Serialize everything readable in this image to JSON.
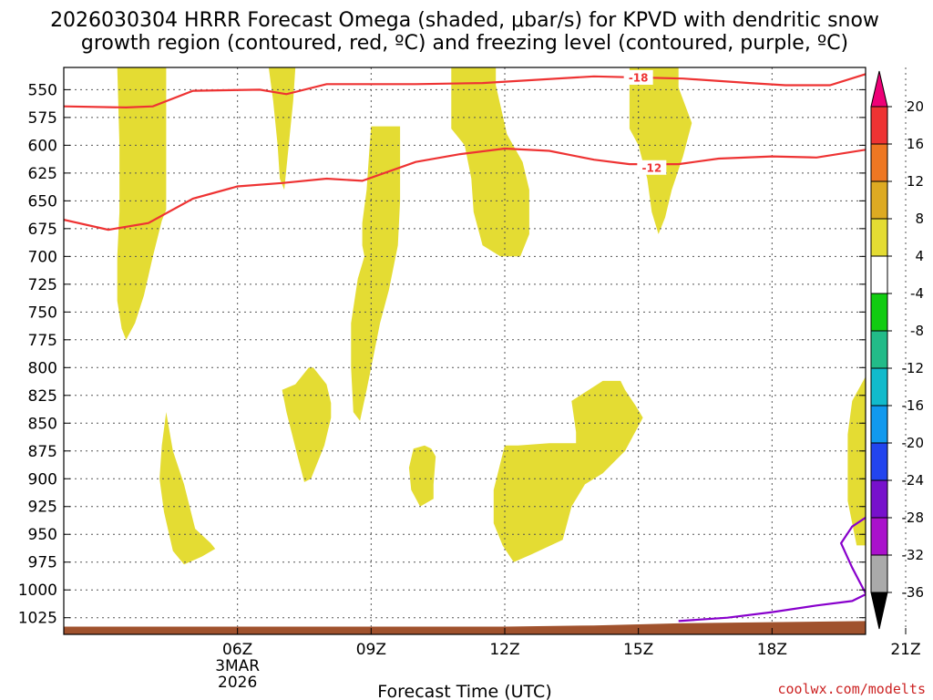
{
  "chart_data": {
    "type": "time-height contour",
    "title_line1": "2026030304 HRRR Forecast Omega (shaded, μbar/s) for KPVD with dendritic snow",
    "title_line2": "growth region (contoured, red, ºC) and freezing level (contoured, purple, ºC)",
    "xlabel": "Forecast Time (UTC)",
    "credit": "coolwx.com/modelts",
    "x_range_hours": [
      2.1,
      20.1
    ],
    "y_range_hpa": [
      1040,
      530
    ],
    "y_ticks": [
      550,
      575,
      600,
      625,
      650,
      675,
      700,
      725,
      750,
      775,
      800,
      825,
      850,
      875,
      900,
      925,
      950,
      975,
      1000,
      1025
    ],
    "x_ticks": [
      {
        "hour": 6,
        "label": "06Z",
        "date": "3MAR",
        "year": "2026"
      },
      {
        "hour": 9,
        "label": "09Z"
      },
      {
        "hour": 12,
        "label": "12Z"
      },
      {
        "hour": 15,
        "label": "15Z"
      },
      {
        "hour": 18,
        "label": "18Z"
      },
      {
        "hour": 21,
        "label": "21Z"
      }
    ],
    "colorbar": [
      {
        "level": 20,
        "color": "#ee0077"
      },
      {
        "level": 16,
        "color": "#ee3333"
      },
      {
        "level": 12,
        "color": "#ee7722"
      },
      {
        "level": 8,
        "color": "#ddaa22"
      },
      {
        "level": 4,
        "color": "#e4dc33"
      },
      {
        "level": -4,
        "color": "#ffffff"
      },
      {
        "level": -8,
        "color": "#11cc11"
      },
      {
        "level": -12,
        "color": "#22bb88"
      },
      {
        "level": -16,
        "color": "#11bbcc"
      },
      {
        "level": -20,
        "color": "#1199ee"
      },
      {
        "level": -24,
        "color": "#2244ee"
      },
      {
        "level": -28,
        "color": "#7711cc"
      },
      {
        "level": -32,
        "color": "#aa11cc"
      },
      {
        "level": -36,
        "color": "#aaaaaa"
      }
    ],
    "colorbar_ends": {
      "top": "#ee0077",
      "bottom": "#000000"
    },
    "omega_shaded_regions": [
      {
        "name": "upward-motion-1",
        "level": "4",
        "points": [
          [
            3.4,
            530
          ],
          [
            4.4,
            530
          ],
          [
            4.4,
            658
          ],
          [
            4.3,
            668
          ],
          [
            4.1,
            700
          ],
          [
            3.9,
            735
          ],
          [
            3.7,
            760
          ],
          [
            3.5,
            775
          ],
          [
            3.4,
            765
          ],
          [
            3.3,
            740
          ],
          [
            3.3,
            700
          ],
          [
            3.35,
            660
          ],
          [
            3.35,
            600
          ],
          [
            3.3,
            530
          ]
        ]
      },
      {
        "name": "upward-motion-2",
        "level": "4",
        "points": [
          [
            6.7,
            530
          ],
          [
            7.3,
            530
          ],
          [
            7.25,
            560
          ],
          [
            7.15,
            600
          ],
          [
            7.05,
            640
          ],
          [
            6.95,
            630
          ],
          [
            6.9,
            600
          ],
          [
            6.8,
            560
          ]
        ]
      },
      {
        "name": "upward-motion-3",
        "level": "4",
        "points": [
          [
            9.0,
            583
          ],
          [
            9.65,
            583
          ],
          [
            9.65,
            650
          ],
          [
            9.6,
            690
          ],
          [
            9.4,
            730
          ],
          [
            9.2,
            760
          ],
          [
            9.05,
            790
          ],
          [
            8.9,
            820
          ],
          [
            8.75,
            848
          ],
          [
            8.6,
            840
          ],
          [
            8.55,
            800
          ],
          [
            8.55,
            760
          ],
          [
            8.7,
            720
          ],
          [
            8.85,
            700
          ],
          [
            8.8,
            690
          ],
          [
            8.8,
            670
          ],
          [
            8.9,
            640
          ],
          [
            8.95,
            610
          ]
        ]
      },
      {
        "name": "upward-motion-4",
        "level": "4",
        "points": [
          [
            10.8,
            530
          ],
          [
            11.8,
            530
          ],
          [
            11.8,
            546
          ],
          [
            12.05,
            590
          ],
          [
            12.4,
            615
          ],
          [
            12.55,
            640
          ],
          [
            12.55,
            680
          ],
          [
            12.35,
            700
          ],
          [
            11.9,
            700
          ],
          [
            11.5,
            690
          ],
          [
            11.3,
            660
          ],
          [
            11.25,
            630
          ],
          [
            11.1,
            600
          ],
          [
            10.8,
            585
          ]
        ]
      },
      {
        "name": "upward-motion-5",
        "level": "4",
        "points": [
          [
            14.8,
            530
          ],
          [
            15.9,
            530
          ],
          [
            15.9,
            548
          ],
          [
            16.2,
            580
          ],
          [
            16.0,
            610
          ],
          [
            15.75,
            640
          ],
          [
            15.6,
            665
          ],
          [
            15.45,
            680
          ],
          [
            15.3,
            660
          ],
          [
            15.2,
            630
          ],
          [
            15.0,
            600
          ],
          [
            14.8,
            585
          ]
        ]
      },
      {
        "name": "upward-motion-6",
        "level": "4",
        "points": [
          [
            7.0,
            820
          ],
          [
            7.3,
            815
          ],
          [
            7.6,
            800
          ],
          [
            7.7,
            800
          ],
          [
            8.0,
            815
          ],
          [
            8.1,
            832
          ],
          [
            8.1,
            845
          ],
          [
            7.95,
            870
          ],
          [
            7.65,
            900
          ],
          [
            7.5,
            903
          ],
          [
            7.35,
            880
          ],
          [
            7.1,
            840
          ]
        ]
      },
      {
        "name": "upward-motion-7",
        "level": "4",
        "points": [
          [
            4.4,
            840
          ],
          [
            4.55,
            875
          ],
          [
            4.8,
            905
          ],
          [
            5.05,
            945
          ],
          [
            5.4,
            958
          ],
          [
            5.5,
            963
          ],
          [
            5.2,
            970
          ],
          [
            4.8,
            977
          ],
          [
            4.55,
            965
          ],
          [
            4.35,
            930
          ],
          [
            4.25,
            900
          ],
          [
            4.3,
            870
          ]
        ]
      },
      {
        "name": "upward-motion-8",
        "level": "4",
        "points": [
          [
            9.95,
            873
          ],
          [
            10.2,
            870
          ],
          [
            10.35,
            873
          ],
          [
            10.45,
            880
          ],
          [
            10.4,
            905
          ],
          [
            10.4,
            918
          ],
          [
            10.1,
            925
          ],
          [
            9.9,
            910
          ],
          [
            9.85,
            890
          ]
        ]
      },
      {
        "name": "upward-motion-9",
        "level": "4",
        "points": [
          [
            12.0,
            870
          ],
          [
            12.3,
            870
          ],
          [
            13.0,
            868
          ],
          [
            13.6,
            868
          ],
          [
            13.6,
            858
          ],
          [
            13.5,
            830
          ],
          [
            14.2,
            812
          ],
          [
            14.6,
            812
          ],
          [
            14.7,
            820
          ],
          [
            14.95,
            835
          ],
          [
            15.1,
            845
          ],
          [
            14.7,
            875
          ],
          [
            14.2,
            895
          ],
          [
            13.8,
            905
          ],
          [
            13.5,
            925
          ],
          [
            13.3,
            955
          ],
          [
            12.6,
            968
          ],
          [
            12.2,
            975
          ],
          [
            11.95,
            960
          ],
          [
            11.75,
            940
          ],
          [
            11.75,
            910
          ]
        ]
      },
      {
        "name": "upward-motion-10",
        "level": "4",
        "points": [
          [
            20.1,
            808
          ],
          [
            19.8,
            830
          ],
          [
            19.7,
            860
          ],
          [
            19.7,
            900
          ],
          [
            19.7,
            920
          ],
          [
            19.8,
            940
          ],
          [
            19.9,
            960
          ],
          [
            20.1,
            960
          ]
        ]
      }
    ],
    "dendritic_contours": [
      {
        "label": "-18",
        "color": "#ee3333",
        "label_at": [
          15.0,
          539
        ],
        "points": [
          [
            2.1,
            565
          ],
          [
            3.5,
            566
          ],
          [
            4.1,
            565
          ],
          [
            5.0,
            551
          ],
          [
            6.5,
            550
          ],
          [
            7.1,
            554
          ],
          [
            8.0,
            545
          ],
          [
            10.0,
            545
          ],
          [
            11.5,
            544
          ],
          [
            14.0,
            538
          ],
          [
            16.0,
            540
          ],
          [
            17.5,
            544
          ],
          [
            18.3,
            546
          ],
          [
            19.3,
            546
          ],
          [
            20.1,
            536
          ]
        ]
      },
      {
        "name": "-12",
        "label": "-12",
        "color": "#ee3333",
        "label_at": [
          15.3,
          620
        ],
        "points": [
          [
            2.1,
            667
          ],
          [
            3.1,
            676
          ],
          [
            4.0,
            670
          ],
          [
            5.0,
            648
          ],
          [
            6.0,
            637
          ],
          [
            7.0,
            634
          ],
          [
            8.0,
            630
          ],
          [
            8.8,
            632
          ],
          [
            10.0,
            615
          ],
          [
            11.0,
            608
          ],
          [
            12.0,
            603
          ],
          [
            13.0,
            605
          ],
          [
            14.0,
            613
          ],
          [
            14.8,
            617
          ],
          [
            15.9,
            617
          ],
          [
            16.8,
            612
          ],
          [
            18.0,
            610
          ],
          [
            19.0,
            611
          ],
          [
            20.1,
            604
          ]
        ]
      }
    ],
    "freezing_level_contours": [
      {
        "color": "#8800cc",
        "points": [
          [
            20.1,
            935
          ],
          [
            19.8,
            943
          ],
          [
            19.55,
            958
          ],
          [
            19.8,
            980
          ],
          [
            20.1,
            1003
          ]
        ]
      },
      {
        "color": "#8800cc",
        "points": [
          [
            15.9,
            1028
          ],
          [
            17.0,
            1025
          ],
          [
            18.0,
            1020
          ],
          [
            19.0,
            1014
          ],
          [
            19.8,
            1010
          ],
          [
            20.1,
            1004
          ]
        ]
      }
    ],
    "ground": {
      "color": "#a0522d",
      "points": [
        [
          2.1,
          1033
        ],
        [
          10.0,
          1033
        ],
        [
          12.0,
          1033
        ],
        [
          14.0,
          1032
        ],
        [
          16.0,
          1030
        ],
        [
          18.0,
          1029
        ],
        [
          20.1,
          1028
        ]
      ]
    }
  }
}
